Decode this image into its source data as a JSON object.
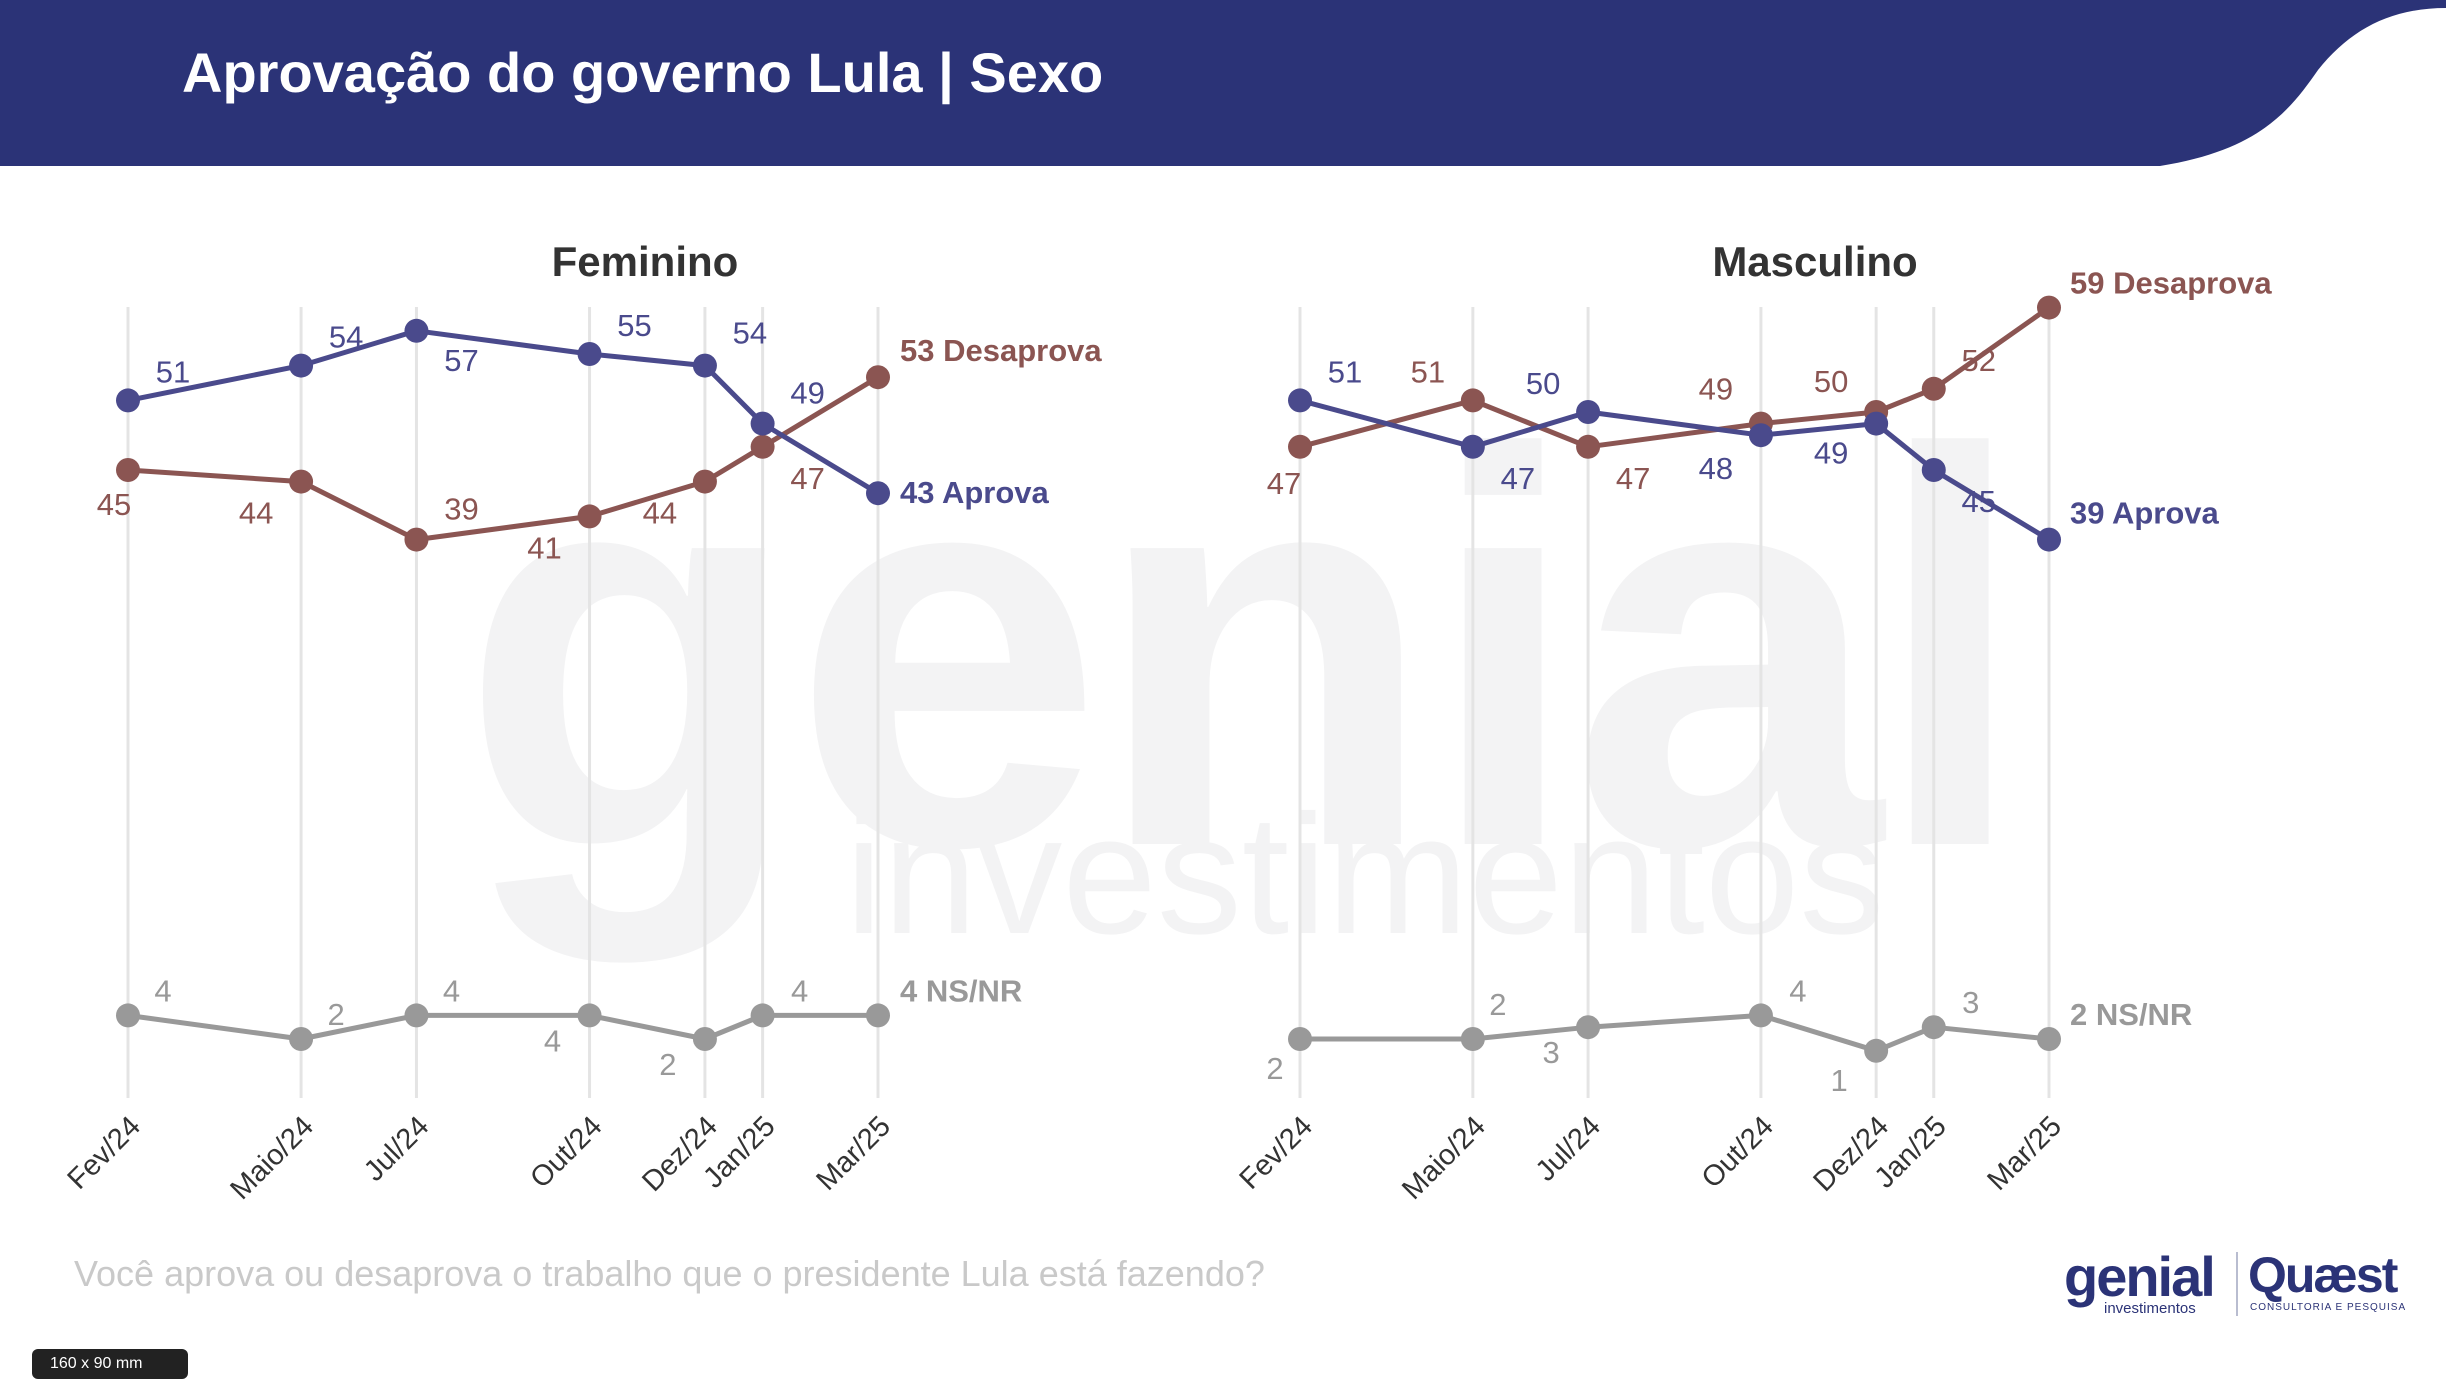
{
  "header": {
    "title": "Aprovação do governo Lula | Sexo",
    "color": "#2b3377"
  },
  "watermark": {
    "big": "genial",
    "small": "investimentos"
  },
  "question": "Você aprova ou desaprova o trabalho que o presidente Lula está fazendo?",
  "logos": {
    "genial": "genial",
    "genial_sub": "investimentos",
    "quaest": "Quæst",
    "quaest_sub": "CONSULTORIA E PESQUISA"
  },
  "size_badge": "160 x 90 mm",
  "colors": {
    "aprova": "#4a4a8c",
    "desaprova": "#8b5552",
    "nsnr": "#999999",
    "grid": "#e4e4e4",
    "title_text": "#333333"
  },
  "chart_data": [
    {
      "type": "line",
      "title": "Feminino",
      "categories": [
        "Fev/24",
        "Maio/24",
        "Jul/24",
        "Out/24",
        "Dez/24",
        "Jan/25",
        "Mar/25"
      ],
      "x_dates": [
        "2024-02",
        "2024-05",
        "2024-07",
        "2024-10",
        "2024-12",
        "2025-01",
        "2025-03"
      ],
      "series": [
        {
          "key": "aprova",
          "name": "Aprova",
          "end_label": "43 Aprova",
          "values": [
            51,
            54,
            57,
            55,
            54,
            49,
            43
          ]
        },
        {
          "key": "desaprova",
          "name": "Desaprova",
          "end_label": "53 Desaprova",
          "values": [
            45,
            44,
            39,
            41,
            44,
            47,
            53
          ]
        },
        {
          "key": "nsnr",
          "name": "NS/NR",
          "end_label": "4 NS/NR",
          "values": [
            4,
            2,
            4,
            4,
            2,
            4,
            4
          ]
        }
      ],
      "grid": "vertical",
      "legend": "end-of-line labels"
    },
    {
      "type": "line",
      "title": "Masculino",
      "categories": [
        "Fev/24",
        "Maio/24",
        "Jul/24",
        "Out/24",
        "Dez/24",
        "Jan/25",
        "Mar/25"
      ],
      "x_dates": [
        "2024-02",
        "2024-05",
        "2024-07",
        "2024-10",
        "2024-12",
        "2025-01",
        "2025-03"
      ],
      "series": [
        {
          "key": "aprova",
          "name": "Aprova",
          "end_label": "39 Aprova",
          "values": [
            51,
            47,
            50,
            48,
            49,
            45,
            39
          ]
        },
        {
          "key": "desaprova",
          "name": "Desaprova",
          "end_label": "59 Desaprova",
          "values": [
            47,
            51,
            47,
            49,
            50,
            52,
            59
          ]
        },
        {
          "key": "nsnr",
          "name": "NS/NR",
          "end_label": "2 NS/NR",
          "values": [
            2,
            2,
            3,
            4,
            1,
            3,
            2
          ]
        }
      ],
      "grid": "vertical",
      "legend": "end-of-line labels"
    }
  ]
}
